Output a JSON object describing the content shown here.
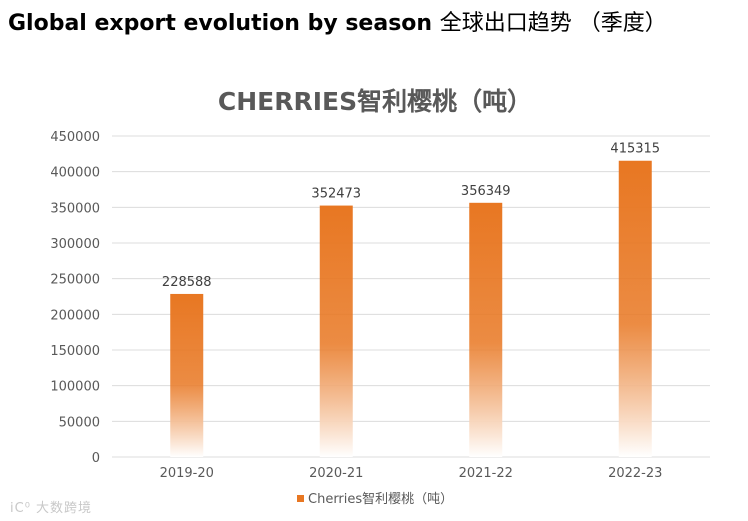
{
  "page": {
    "heading_en": "Global export evolution by season",
    "heading_cn": "全球出口趋势 （季度）"
  },
  "watermark": "iC⁰ 大数跨境",
  "chart_data": {
    "type": "bar",
    "title": "CHERRIES智利樱桃（吨）",
    "categories": [
      "2019-20",
      "2020-21",
      "2021-22",
      "2022-23"
    ],
    "series": [
      {
        "name": "Cherries智利樱桃（吨）",
        "values": [
          228588,
          352473,
          356349,
          415315
        ]
      }
    ],
    "ylim": [
      0,
      450000
    ],
    "yticks": [
      0,
      50000,
      100000,
      150000,
      200000,
      250000,
      300000,
      350000,
      400000,
      450000
    ],
    "ytick_labels": [
      "0",
      "50000",
      "100000",
      "150000",
      "200000",
      "250000",
      "300000",
      "350000",
      "400000",
      "450000"
    ],
    "grid": true,
    "legend": "bottom-center",
    "colors": {
      "bar": "#e87722",
      "bar_fade": "#ffffff",
      "grid": "#dcdcdc",
      "text": "#595959"
    }
  }
}
